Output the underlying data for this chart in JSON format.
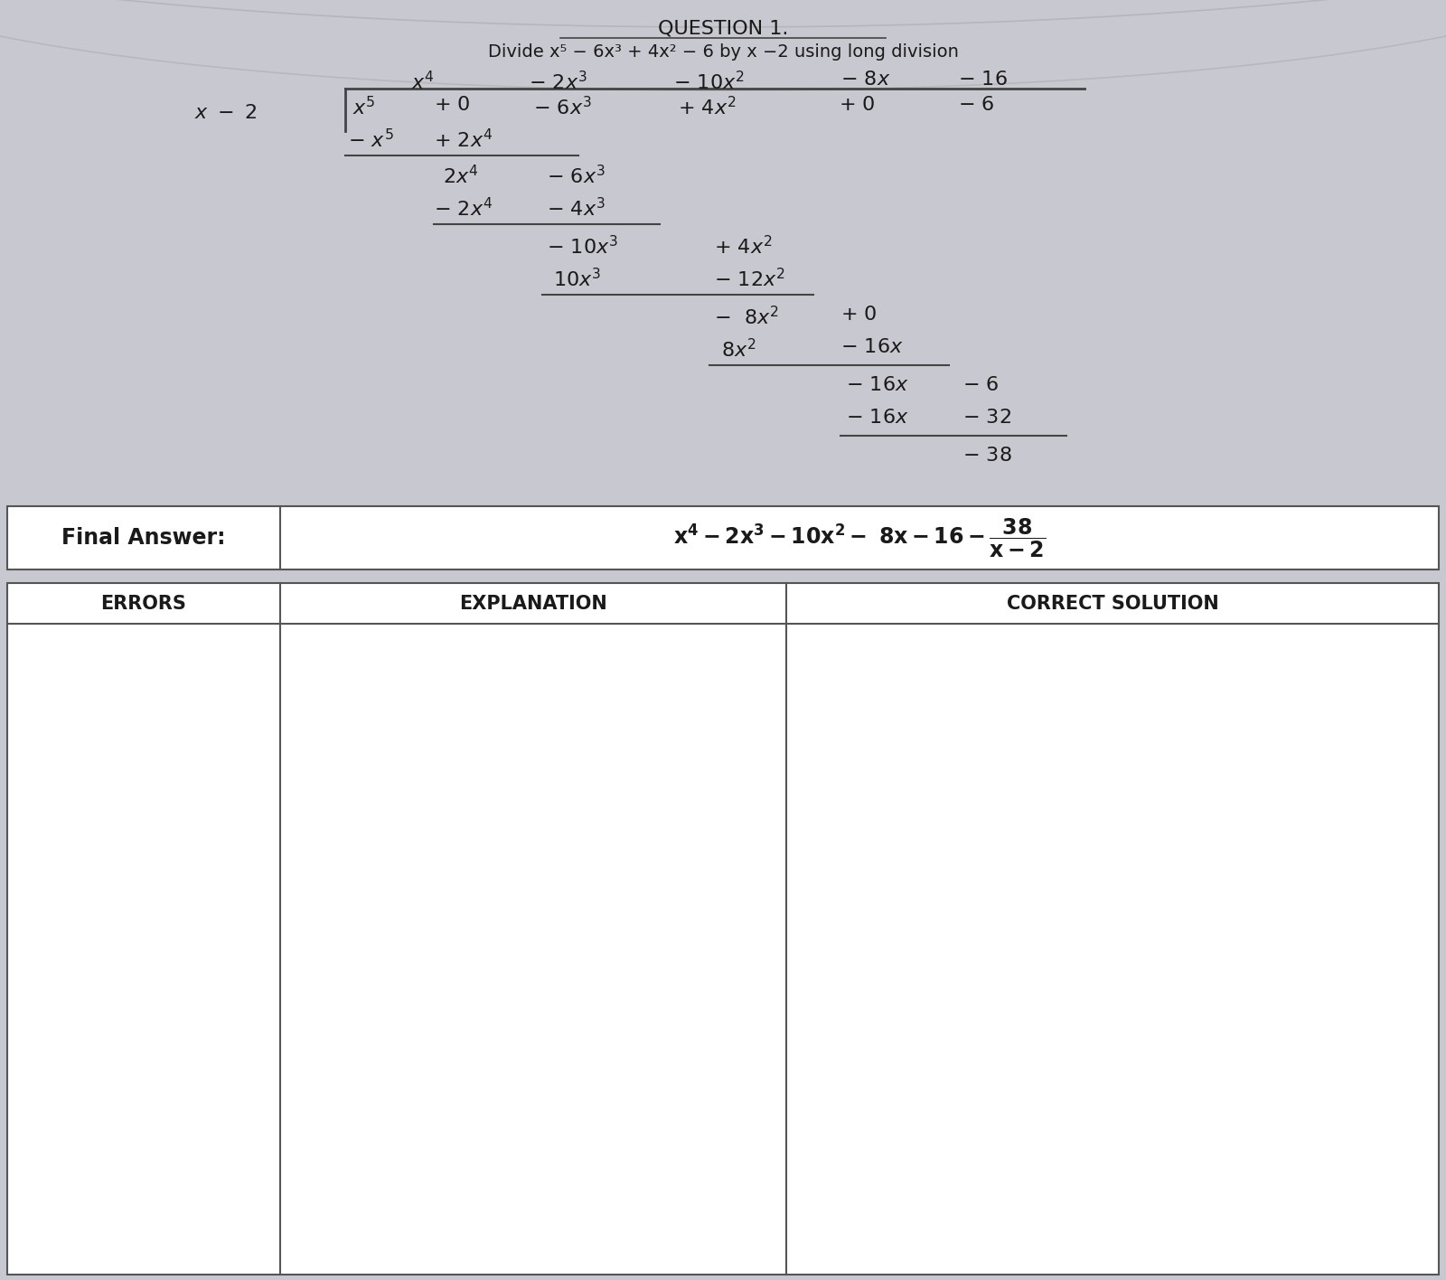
{
  "bg_color": "#c8c8d0",
  "text_color": "#1a1a1a",
  "line_color": "#444444",
  "title": "QUESTION 1.",
  "subtitle": "Divide x⁵ − 6x³ + 4x² − 6 by x −2 using long division",
  "final_answer_label": "Final Answer:",
  "errors_label": "ERRORS",
  "explanation_label": "EXPLANATION",
  "correct_solution_label": "CORRECT SOLUTION",
  "fig_w": 16.0,
  "fig_h": 14.16,
  "dpi": 100
}
